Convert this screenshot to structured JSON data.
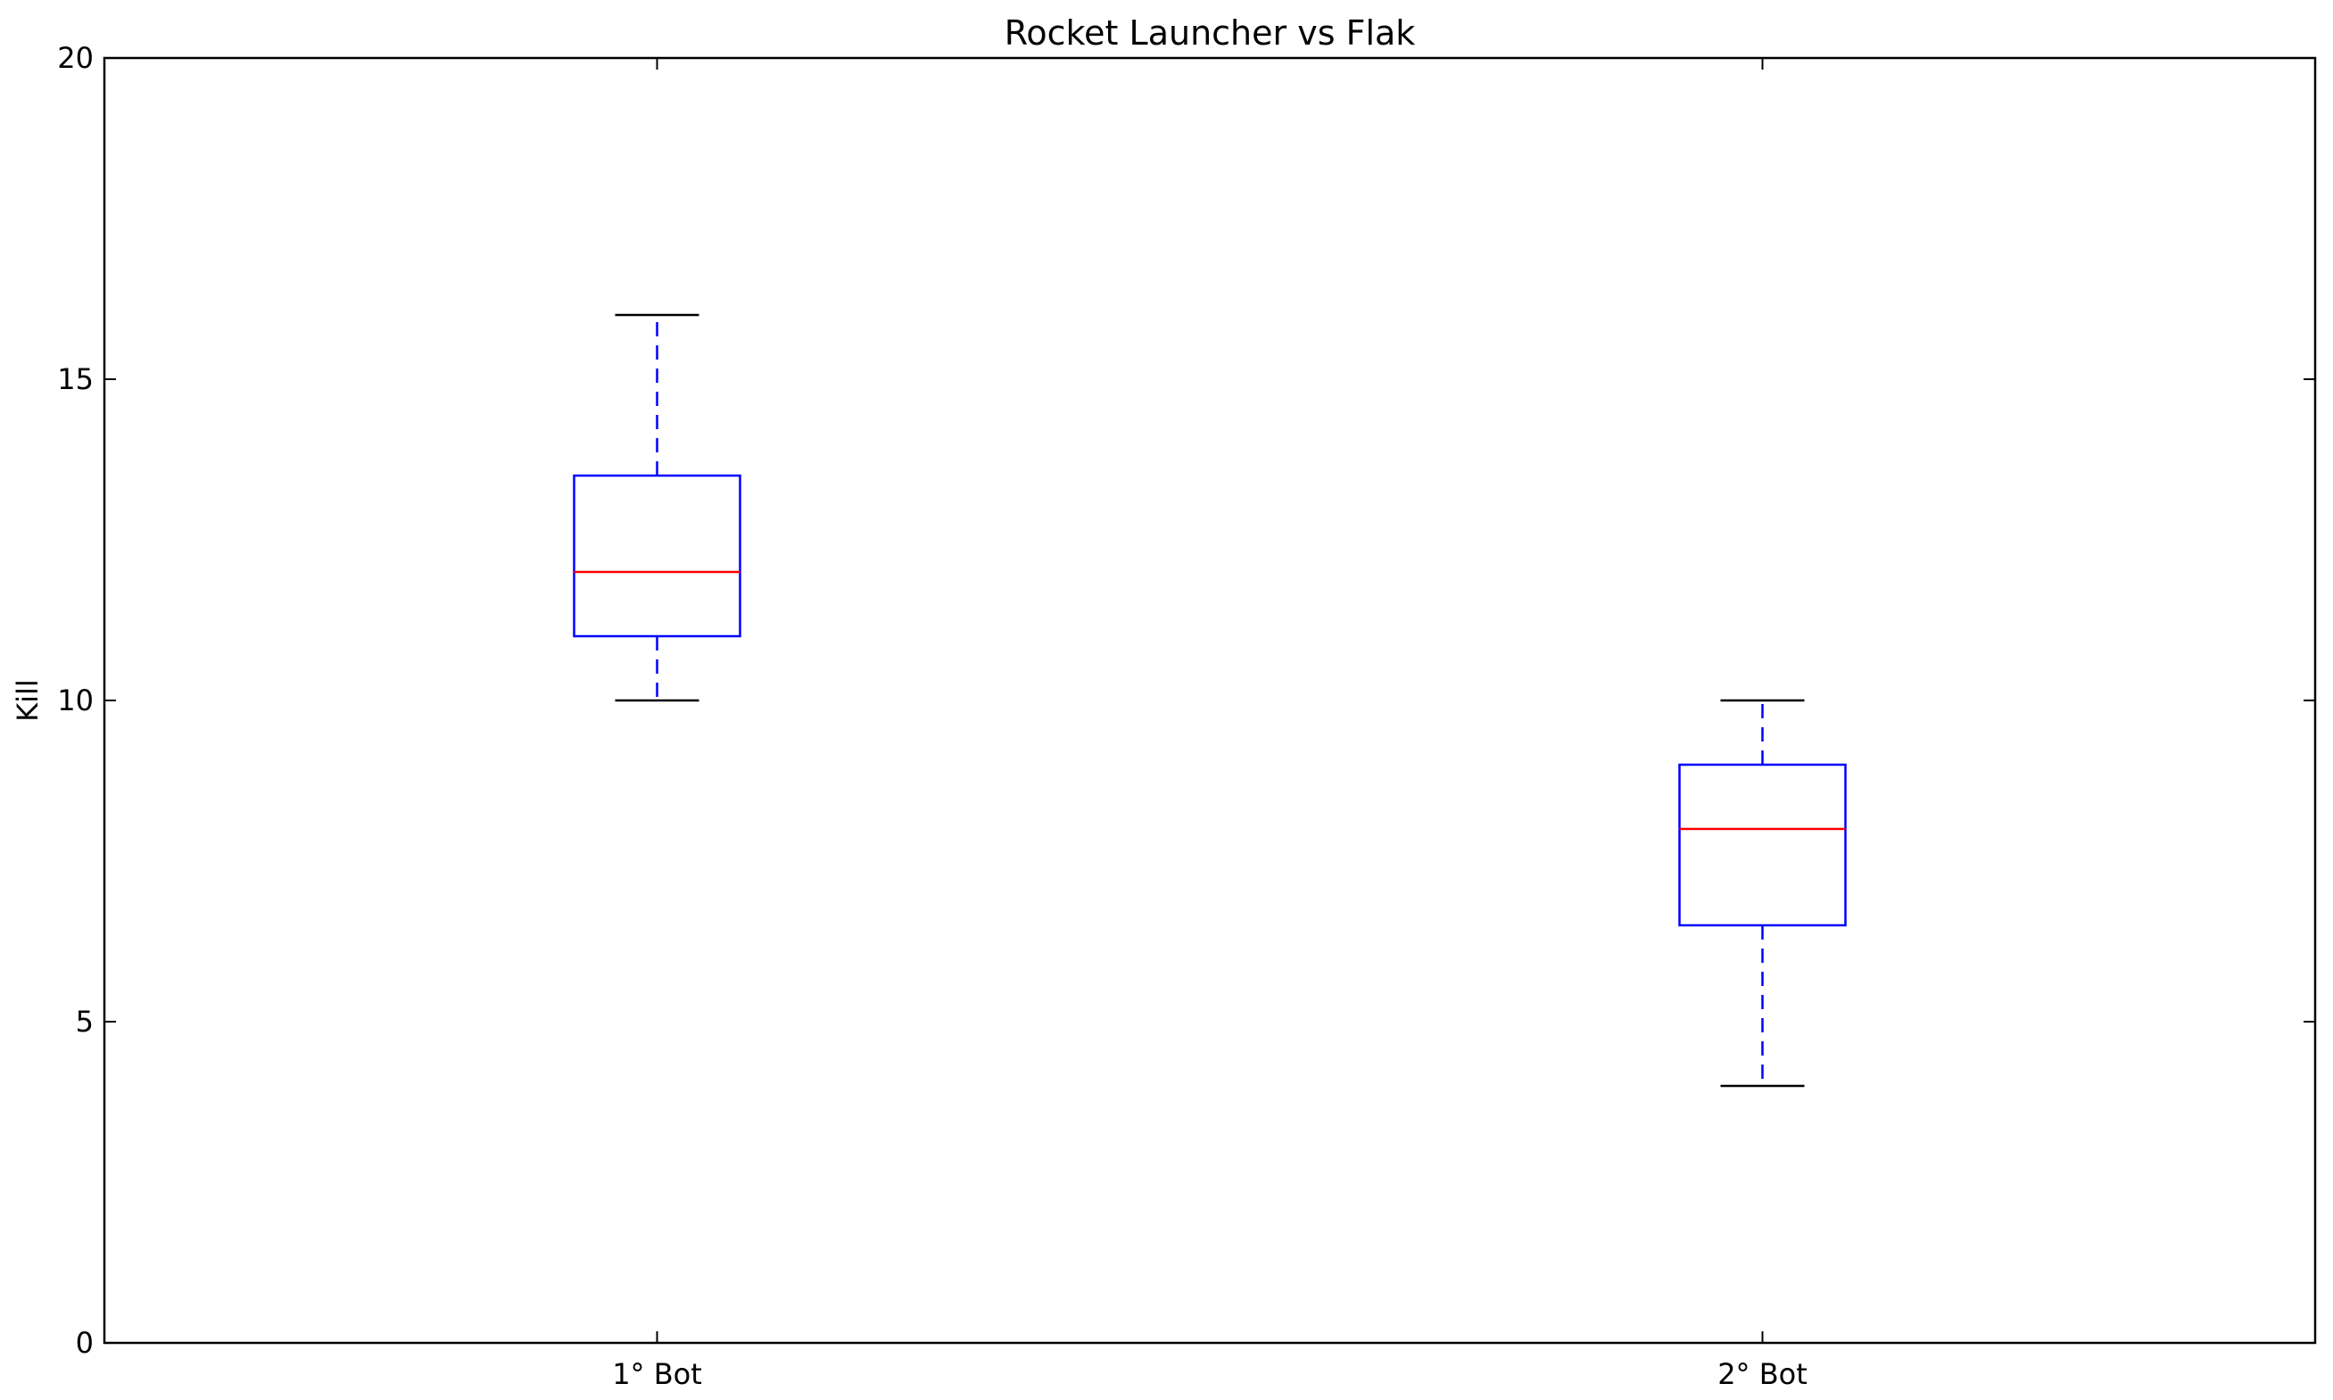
{
  "chart_data": {
    "type": "box",
    "title": "Rocket Launcher vs Flak",
    "xlabel": "",
    "ylabel": "Kill",
    "ylim": [
      0,
      20
    ],
    "yticks": [
      0,
      5,
      10,
      15,
      20
    ],
    "grid": false,
    "categories": [
      "1° Bot",
      "2° Bot"
    ],
    "boxes": [
      {
        "category": "1° Bot",
        "whisker_low": 10,
        "q1": 11,
        "median": 12,
        "q3": 13.5,
        "whisker_high": 16
      },
      {
        "category": "2° Bot",
        "whisker_low": 4,
        "q1": 6.5,
        "median": 8,
        "q3": 9,
        "whisker_high": 10
      }
    ],
    "colors": {
      "box": "#0000ff",
      "median": "#ff0000",
      "whisker": "#0000ff",
      "cap": "#000000",
      "axes": "#000000"
    }
  }
}
